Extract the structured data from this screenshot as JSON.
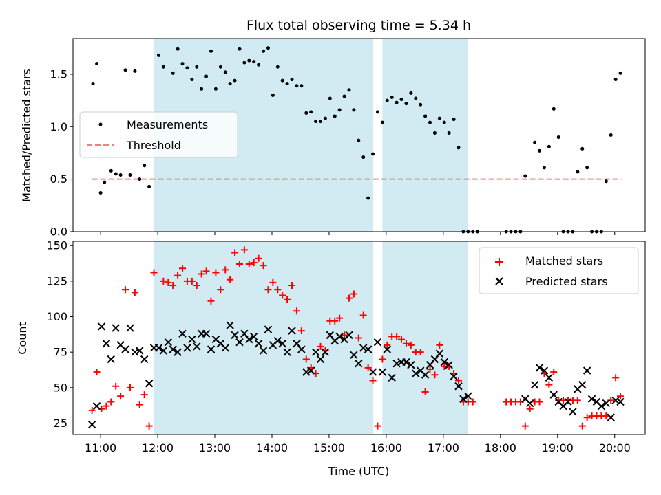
{
  "chart_data": [
    {
      "type": "scatter",
      "title": "Flux total observing time = 5.34 h",
      "ylabel": "Matched/Predicted stars",
      "xlabel": "",
      "xlim": [
        "10:31",
        "20:32"
      ],
      "ylim": [
        0,
        1.84
      ],
      "yticks": [
        0.0,
        0.5,
        1.0,
        1.5
      ],
      "ytick_labels": [
        "0.0",
        "0.5",
        "1.0",
        "1.5"
      ],
      "legend": {
        "placement": "center-left",
        "entries": [
          "Measurements",
          "Threshold"
        ]
      },
      "colors": {
        "measurements": "#000000",
        "threshold": "#f08080",
        "shade": "#add8e6"
      },
      "shaded_intervals": [
        [
          "11:56",
          "15:46"
        ],
        [
          "15:56",
          "17:26"
        ]
      ],
      "threshold": {
        "name": "Threshold",
        "y": 0.5,
        "x_range": [
          "10:51",
          "20:07"
        ]
      },
      "series": [
        {
          "name": "Measurements",
          "x": [
            "10:52",
            "10:56",
            "11:00",
            "11:04",
            "11:11",
            "11:16",
            "11:21",
            "11:26",
            "11:31",
            "11:36",
            "11:41",
            "11:46",
            "11:51",
            "12:01",
            "12:06",
            "12:16",
            "12:21",
            "12:26",
            "12:31",
            "12:36",
            "12:41",
            "12:46",
            "12:51",
            "12:56",
            "13:01",
            "13:06",
            "13:11",
            "13:16",
            "13:21",
            "13:26",
            "13:31",
            "13:36",
            "13:41",
            "13:46",
            "13:51",
            "13:56",
            "14:01",
            "14:06",
            "14:11",
            "14:16",
            "14:21",
            "14:26",
            "14:31",
            "14:36",
            "14:41",
            "14:46",
            "14:51",
            "14:56",
            "15:01",
            "15:06",
            "15:11",
            "15:16",
            "15:21",
            "15:26",
            "15:31",
            "15:36",
            "15:41",
            "15:46",
            "15:51",
            "15:56",
            "16:01",
            "16:06",
            "16:11",
            "16:16",
            "16:21",
            "16:26",
            "16:31",
            "16:36",
            "16:41",
            "16:46",
            "16:51",
            "16:56",
            "17:01",
            "17:06",
            "17:11",
            "17:16",
            "17:21",
            "17:26",
            "17:31",
            "17:36",
            "18:06",
            "18:11",
            "18:16",
            "18:21",
            "18:26",
            "18:36",
            "18:41",
            "18:46",
            "18:51",
            "18:56",
            "19:01",
            "19:06",
            "19:11",
            "19:16",
            "19:21",
            "19:26",
            "19:31",
            "19:36",
            "19:41",
            "19:46",
            "19:51",
            "19:56",
            "20:01",
            "20:06"
          ],
          "y": [
            1.41,
            1.6,
            0.37,
            0.47,
            0.58,
            0.55,
            0.54,
            1.54,
            0.54,
            1.53,
            0.5,
            0.63,
            0.43,
            1.68,
            1.57,
            1.51,
            1.74,
            1.6,
            1.56,
            1.45,
            1.57,
            1.36,
            1.48,
            1.72,
            1.36,
            1.57,
            1.52,
            1.41,
            1.44,
            1.74,
            1.61,
            1.63,
            1.62,
            1.59,
            1.72,
            1.75,
            1.3,
            1.57,
            1.44,
            1.41,
            1.45,
            1.39,
            1.39,
            1.13,
            1.14,
            1.05,
            1.05,
            1.08,
            1.27,
            1.1,
            1.16,
            1.29,
            1.35,
            1.16,
            0.87,
            0.71,
            0.32,
            0.74,
            1.14,
            1.04,
            1.25,
            1.28,
            1.23,
            1.26,
            1.22,
            1.32,
            1.27,
            1.21,
            1.1,
            1.04,
            0.94,
            1.08,
            1.04,
            0.94,
            1.07,
            0.8,
            0.0,
            0.0,
            0.0,
            0.0,
            0.0,
            0.0,
            0.0,
            0.0,
            0.53,
            0.85,
            0.77,
            0.61,
            0.81,
            1.17,
            0.9,
            0.0,
            0.0,
            0.0,
            0.57,
            0.79,
            0.61,
            0.0,
            0.0,
            0.0,
            0.48,
            0.92,
            1.45,
            1.51
          ]
        }
      ]
    },
    {
      "type": "scatter",
      "title": "",
      "xlabel": "Time (UTC)",
      "ylabel": "Count",
      "xlim": [
        "10:31",
        "20:32"
      ],
      "ylim": [
        17,
        153
      ],
      "xticks": [
        "11:00",
        "12:00",
        "13:00",
        "14:00",
        "15:00",
        "16:00",
        "17:00",
        "18:00",
        "19:00",
        "20:00"
      ],
      "yticks": [
        25,
        50,
        75,
        100,
        125,
        150
      ],
      "ytick_labels": [
        "25",
        "50",
        "75",
        "100",
        "125",
        "150"
      ],
      "legend": {
        "placement": "top-right",
        "entries": [
          "Matched stars",
          "Predicted stars"
        ]
      },
      "colors": {
        "matched": "#ff0000",
        "predicted": "#000000",
        "shade": "#add8e6"
      },
      "shaded_intervals": [
        [
          "11:56",
          "15:46"
        ],
        [
          "15:56",
          "17:26"
        ]
      ],
      "series": [
        {
          "name": "Matched stars",
          "marker": "+",
          "x": [
            "10:51",
            "10:56",
            "11:01",
            "11:06",
            "11:11",
            "11:16",
            "11:21",
            "11:26",
            "11:31",
            "11:36",
            "11:41",
            "11:46",
            "11:51",
            "11:56",
            "12:06",
            "12:11",
            "12:16",
            "12:21",
            "12:26",
            "12:31",
            "12:36",
            "12:41",
            "12:46",
            "12:51",
            "12:56",
            "13:01",
            "13:06",
            "13:11",
            "13:16",
            "13:21",
            "13:26",
            "13:31",
            "13:36",
            "13:41",
            "13:46",
            "13:51",
            "13:56",
            "14:01",
            "14:06",
            "14:11",
            "14:16",
            "14:21",
            "14:26",
            "14:31",
            "14:36",
            "14:41",
            "14:46",
            "14:51",
            "14:56",
            "15:01",
            "15:06",
            "15:11",
            "15:16",
            "15:21",
            "15:26",
            "15:31",
            "15:36",
            "15:41",
            "15:46",
            "15:51",
            "15:56",
            "16:01",
            "16:06",
            "16:11",
            "16:16",
            "16:21",
            "16:26",
            "16:31",
            "16:36",
            "16:41",
            "16:46",
            "16:51",
            "16:56",
            "17:01",
            "17:06",
            "17:11",
            "17:16",
            "17:21",
            "17:26",
            "17:31",
            "18:06",
            "18:11",
            "18:16",
            "18:21",
            "18:26",
            "18:31",
            "18:36",
            "18:41",
            "18:46",
            "18:51",
            "18:56",
            "19:01",
            "19:06",
            "19:11",
            "19:16",
            "19:21",
            "19:26",
            "19:31",
            "19:36",
            "19:41",
            "19:46",
            "19:51",
            "19:56",
            "20:01",
            "20:06"
          ],
          "y": [
            34,
            61,
            35,
            37,
            40,
            51,
            44,
            119,
            50,
            117,
            38,
            45,
            23,
            131,
            125,
            124,
            122,
            129,
            134,
            125,
            125,
            122,
            130,
            132,
            111,
            131,
            119,
            133,
            126,
            145,
            137,
            147,
            137,
            138,
            141,
            136,
            119,
            124,
            119,
            115,
            112,
            122,
            104,
            90,
            70,
            64,
            60,
            79,
            76,
            97,
            97,
            99,
            87,
            113,
            116,
            85,
            101,
            64,
            55,
            23,
            70,
            80,
            86,
            86,
            84,
            81,
            80,
            75,
            75,
            47,
            63,
            59,
            80,
            65,
            65,
            60,
            55,
            40,
            40,
            40,
            40,
            40,
            40,
            40,
            23,
            35,
            40,
            40,
            60,
            52,
            61,
            41,
            41,
            41,
            41,
            41,
            23,
            29,
            30,
            30,
            30,
            30,
            41,
            57,
            44
          ]
        },
        {
          "name": "Predicted stars",
          "marker": "x",
          "x": [
            "10:51",
            "10:56",
            "11:01",
            "11:06",
            "11:11",
            "11:16",
            "11:21",
            "11:26",
            "11:31",
            "11:36",
            "11:41",
            "11:46",
            "11:51",
            "11:56",
            "12:01",
            "12:06",
            "12:11",
            "12:16",
            "12:21",
            "12:26",
            "12:31",
            "12:36",
            "12:41",
            "12:46",
            "12:51",
            "12:56",
            "13:01",
            "13:06",
            "13:11",
            "13:16",
            "13:21",
            "13:26",
            "13:31",
            "13:36",
            "13:41",
            "13:46",
            "13:51",
            "13:56",
            "14:01",
            "14:06",
            "14:11",
            "14:16",
            "14:21",
            "14:26",
            "14:31",
            "14:36",
            "14:41",
            "14:46",
            "14:51",
            "14:56",
            "15:01",
            "15:06",
            "15:11",
            "15:16",
            "15:21",
            "15:26",
            "15:31",
            "15:36",
            "15:41",
            "15:46",
            "15:51",
            "15:56",
            "16:01",
            "16:06",
            "16:11",
            "16:16",
            "16:21",
            "16:26",
            "16:31",
            "16:36",
            "16:41",
            "16:46",
            "16:51",
            "16:56",
            "17:01",
            "17:06",
            "17:11",
            "17:16",
            "17:21",
            "17:26",
            "18:26",
            "18:31",
            "18:36",
            "18:41",
            "18:46",
            "18:51",
            "18:56",
            "19:01",
            "19:06",
            "19:11",
            "19:16",
            "19:21",
            "19:26",
            "19:31",
            "19:36",
            "19:41",
            "19:46",
            "19:51",
            "19:56",
            "20:01",
            "20:06"
          ],
          "y": [
            24,
            37,
            93,
            81,
            70,
            92,
            80,
            77,
            92,
            75,
            76,
            70,
            53,
            78,
            78,
            76,
            82,
            77,
            75,
            88,
            78,
            84,
            79,
            88,
            88,
            77,
            84,
            81,
            78,
            94,
            87,
            82,
            88,
            84,
            86,
            81,
            76,
            91,
            80,
            83,
            81,
            75,
            90,
            81,
            77,
            61,
            62,
            75,
            70,
            75,
            87,
            83,
            86,
            84,
            87,
            73,
            67,
            78,
            77,
            61,
            82,
            61,
            77,
            57,
            67,
            68,
            68,
            66,
            60,
            62,
            59,
            66,
            70,
            74,
            68,
            66,
            58,
            51,
            42,
            44,
            42,
            39,
            52,
            64,
            62,
            57,
            45,
            40,
            37,
            40,
            33,
            49,
            52,
            62,
            42,
            40,
            37,
            39,
            29,
            41,
            40
          ]
        }
      ]
    }
  ]
}
